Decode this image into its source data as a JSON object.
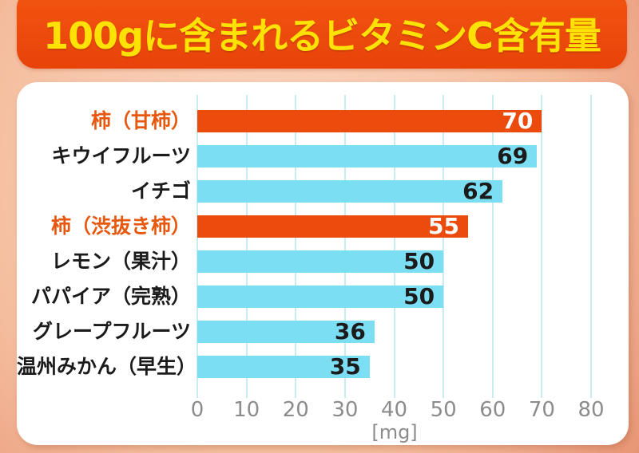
{
  "title": "100gに含まれるビタミンC含有量",
  "chart_data": {
    "type": "bar",
    "orientation": "horizontal",
    "title": "100gに含まれるビタミンC含有量",
    "unit_label": "[mg]",
    "xlim": [
      0,
      80
    ],
    "x_ticks": [
      0,
      10,
      20,
      30,
      40,
      50,
      60,
      70,
      80
    ],
    "grid": true,
    "legend": false,
    "categories": [
      "柿（甘柿）",
      "キウイフルーツ",
      "イチゴ",
      "柿（渋抜き柿）",
      "レモン（果汁）",
      "パパイア（完熟）",
      "グレープフルーツ",
      "温州みかん（早生）"
    ],
    "values": [
      70,
      69,
      62,
      55,
      50,
      50,
      36,
      35
    ],
    "highlighted": [
      true,
      false,
      false,
      true,
      false,
      false,
      false,
      false
    ],
    "value_label_position": "inside-end"
  },
  "colors": {
    "highlight_bar": "#eb4b0d",
    "default_bar": "#7cdef2",
    "highlight_category_text": "#e7580e",
    "default_category_text": "#1b1b1b",
    "value_text_on_highlight": "#ffffff",
    "value_text_on_default": "#1b1b1b",
    "gridline": "#c9ecf2",
    "axis_text": "#8c8c8c",
    "banner_top": "#f25510",
    "banner_bottom": "#e8430a",
    "title_text": "#ffe205",
    "card_bg": "#ffffff"
  }
}
